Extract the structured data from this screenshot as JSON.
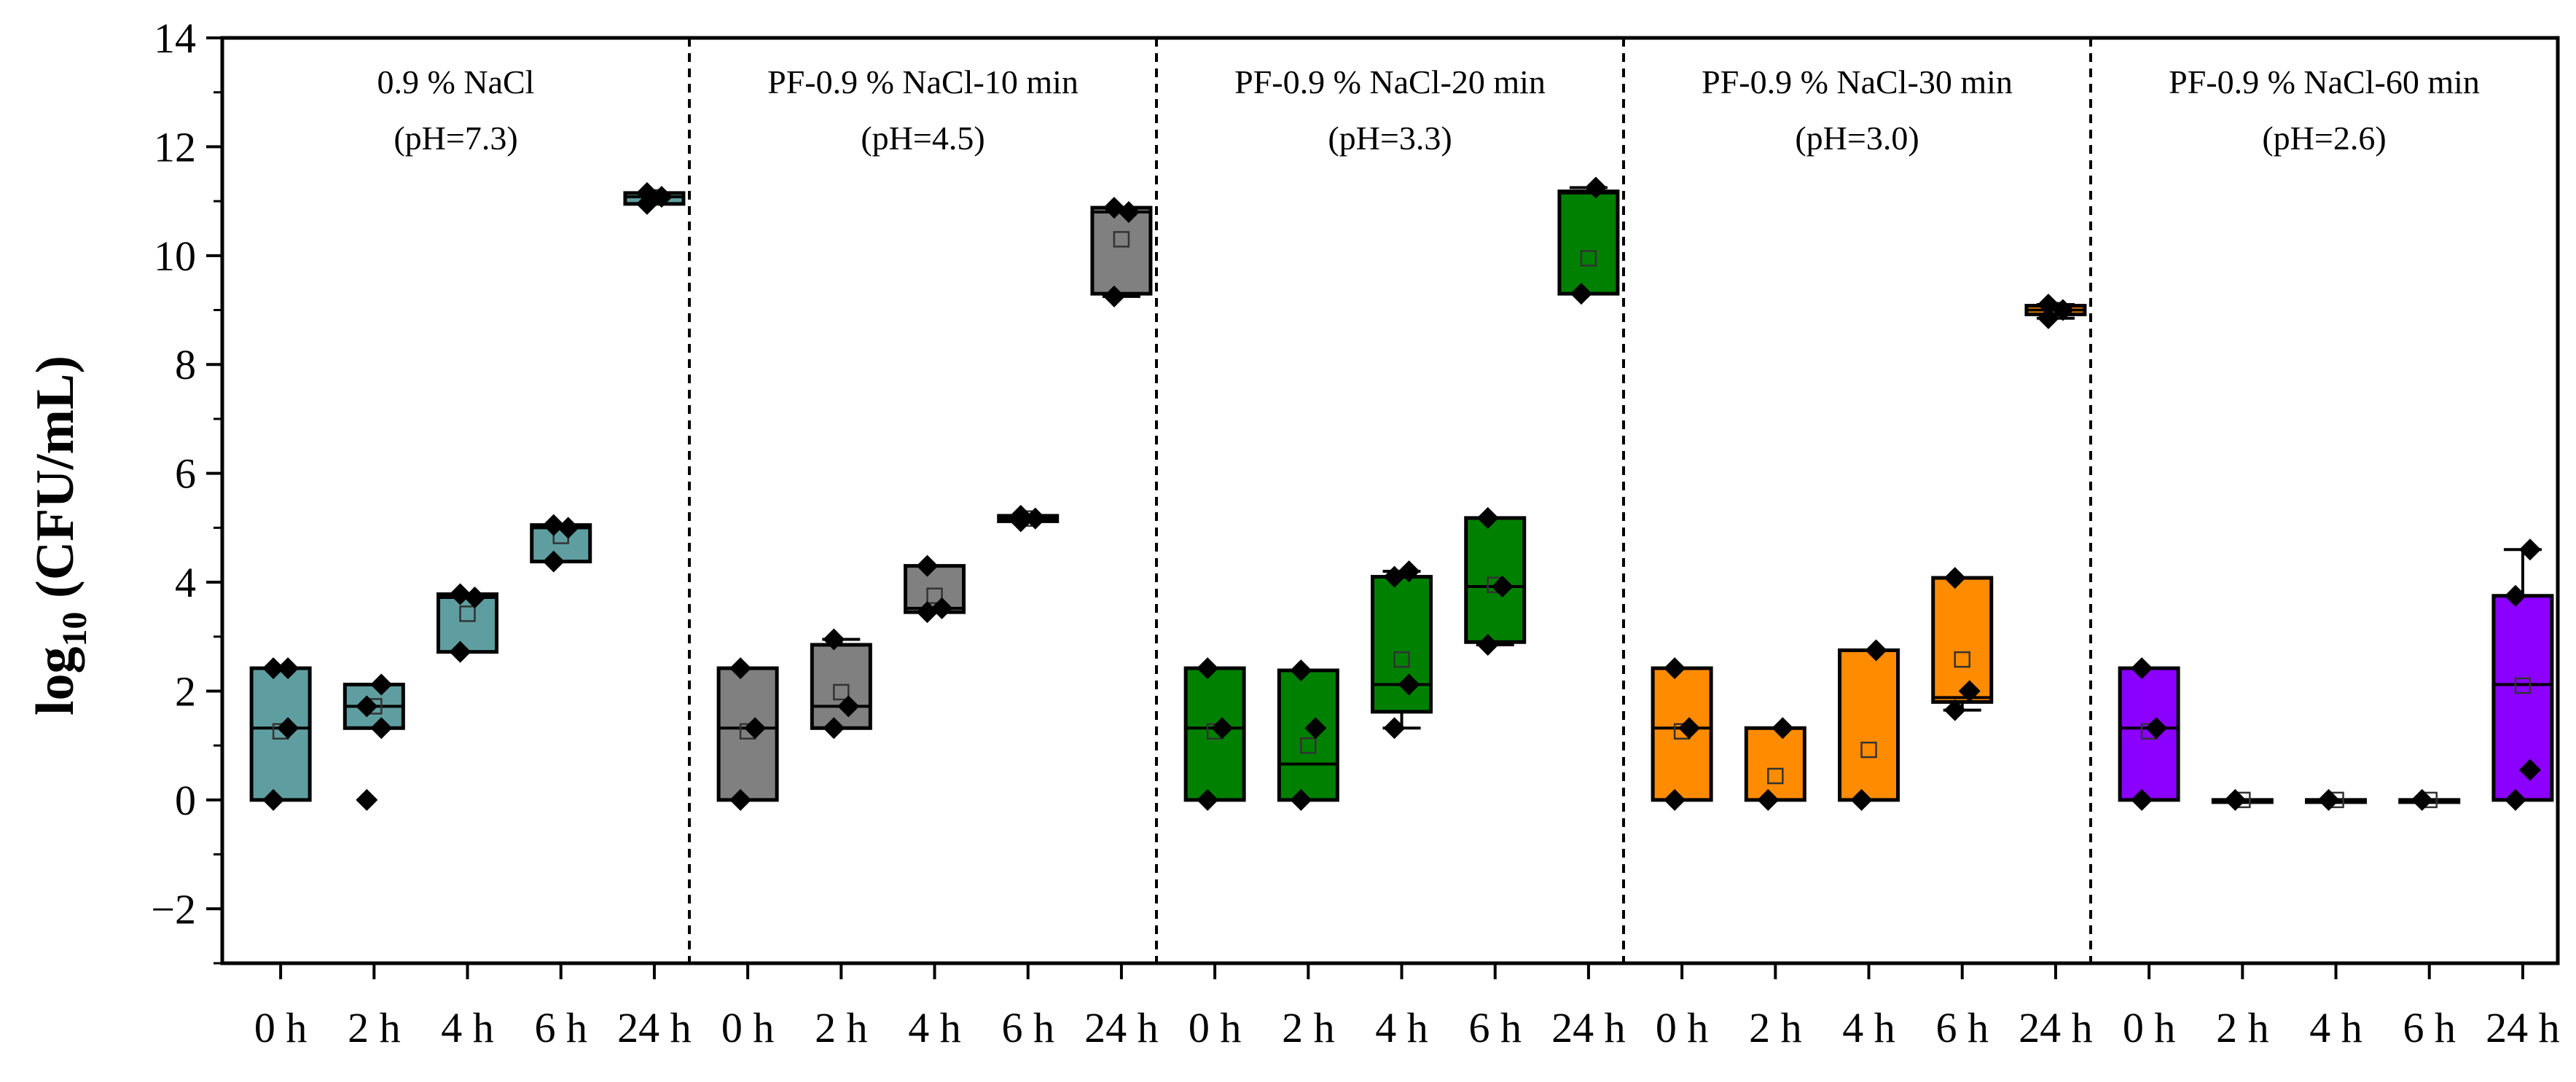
{
  "chart_data": {
    "type": "box",
    "ylabel_main": "log",
    "ylabel_sub": "10",
    "ylabel_rest": " (CFU/mL)",
    "ylim": [
      -3,
      14
    ],
    "yticks": [
      -2,
      0,
      2,
      4,
      6,
      8,
      10,
      12,
      14
    ],
    "ytick_labels": [
      "−2",
      "0",
      "2",
      "4",
      "6",
      "8",
      "10",
      "12",
      "14"
    ],
    "categories": [
      "0 h",
      "2 h",
      "4 h",
      "6 h",
      "24 h"
    ],
    "groups": [
      {
        "title": "0.9 % NaCl",
        "subtitle": "(pH=7.3)",
        "color": "#5f9ea0",
        "boxes": [
          {
            "q1": 0,
            "median": 1.32,
            "q3": 2.42,
            "mean": 1.26,
            "points": [
              0,
              1.32,
              2.42,
              2.42
            ],
            "whisker_low": 0,
            "whisker_high": 2.42
          },
          {
            "q1": 1.32,
            "median": 1.72,
            "q3": 2.12,
            "mean": 1.72,
            "points": [
              0,
              1.32,
              1.72,
              2.12
            ],
            "whisker_low": 1.32,
            "whisker_high": 2.12
          },
          {
            "q1": 2.72,
            "median": 3.72,
            "q3": 3.78,
            "mean": 3.42,
            "points": [
              2.72,
              3.72,
              3.78
            ],
            "whisker_low": 2.72,
            "whisker_high": 3.78
          },
          {
            "q1": 4.38,
            "median": 5.0,
            "q3": 5.05,
            "mean": 4.85,
            "points": [
              4.38,
              5.0,
              5.05
            ],
            "whisker_low": 4.38,
            "whisker_high": 5.05
          },
          {
            "q1": 10.95,
            "median": 11.08,
            "q3": 11.15,
            "mean": 11.07,
            "points": [
              10.95,
              11.08,
              11.15
            ],
            "whisker_low": 10.95,
            "whisker_high": 11.15
          }
        ]
      },
      {
        "title": "PF-0.9 % NaCl-10 min",
        "subtitle": "(pH=4.5)",
        "color": "#808080",
        "boxes": [
          {
            "q1": 0,
            "median": 1.32,
            "q3": 2.42,
            "mean": 1.26,
            "points": [
              0,
              1.32,
              2.42
            ],
            "whisker_low": 0,
            "whisker_high": 2.42
          },
          {
            "q1": 1.32,
            "median": 1.72,
            "q3": 2.85,
            "mean": 1.98,
            "points": [
              1.32,
              1.72,
              2.95
            ],
            "whisker_low": 1.32,
            "whisker_high": 2.95
          },
          {
            "q1": 3.45,
            "median": 3.52,
            "q3": 4.3,
            "mean": 3.75,
            "points": [
              3.45,
              3.52,
              4.3
            ],
            "whisker_low": 3.45,
            "whisker_high": 4.3
          },
          {
            "q1": 5.12,
            "median": 5.17,
            "q3": 5.22,
            "mean": 5.17,
            "points": [
              5.12,
              5.17,
              5.22
            ],
            "whisker_low": 5.12,
            "whisker_high": 5.22
          },
          {
            "q1": 9.3,
            "median": 10.8,
            "q3": 10.88,
            "mean": 10.3,
            "points": [
              9.25,
              10.8,
              10.88
            ],
            "whisker_low": 9.25,
            "whisker_high": 10.88
          }
        ]
      },
      {
        "title": "PF-0.9 % NaCl-20 min",
        "subtitle": "(pH=3.3)",
        "color": "#008000",
        "boxes": [
          {
            "q1": 0,
            "median": 1.32,
            "q3": 2.42,
            "mean": 1.26,
            "points": [
              0,
              1.32,
              2.42
            ],
            "whisker_low": 0,
            "whisker_high": 2.42
          },
          {
            "q1": 0,
            "median": 0.66,
            "q3": 2.38,
            "mean": 1.0,
            "points": [
              0,
              1.32,
              2.38
            ],
            "whisker_low": 0,
            "whisker_high": 2.38
          },
          {
            "q1": 1.62,
            "median": 2.12,
            "q3": 4.1,
            "mean": 2.58,
            "points": [
              1.32,
              2.12,
              4.1,
              4.2
            ],
            "whisker_low": 1.32,
            "whisker_high": 4.2
          },
          {
            "q1": 2.9,
            "median": 3.92,
            "q3": 5.18,
            "mean": 3.95,
            "points": [
              2.85,
              3.92,
              5.18
            ],
            "whisker_low": 2.85,
            "whisker_high": 5.18
          },
          {
            "q1": 9.3,
            "median": 11.15,
            "q3": 11.18,
            "mean": 9.95,
            "points": [
              9.3,
              11.25
            ],
            "whisker_low": 9.3,
            "whisker_high": 11.25
          }
        ]
      },
      {
        "title": "PF-0.9 % NaCl-30 min",
        "subtitle": "(pH=3.0)",
        "color": "#ff8c00",
        "boxes": [
          {
            "q1": 0,
            "median": 1.32,
            "q3": 2.42,
            "mean": 1.26,
            "points": [
              0,
              1.32,
              2.42
            ],
            "whisker_low": 0,
            "whisker_high": 2.42
          },
          {
            "q1": 0,
            "median": 0,
            "q3": 1.32,
            "mean": 0.44,
            "points": [
              0,
              1.32
            ],
            "whisker_low": 0,
            "whisker_high": 1.32
          },
          {
            "q1": 0,
            "median": 0,
            "q3": 2.75,
            "mean": 0.92,
            "points": [
              0,
              2.75
            ],
            "whisker_low": 0,
            "whisker_high": 2.75
          },
          {
            "q1": 1.8,
            "median": 1.88,
            "q3": 4.08,
            "mean": 2.58,
            "points": [
              1.65,
              2.0,
              4.08
            ],
            "whisker_low": 1.65,
            "whisker_high": 4.08
          },
          {
            "q1": 8.92,
            "median": 9.0,
            "q3": 9.08,
            "mean": 9.0,
            "points": [
              8.85,
              9.0,
              9.1
            ],
            "whisker_low": 8.85,
            "whisker_high": 9.1
          }
        ]
      },
      {
        "title": "PF-0.9 % NaCl-60 min",
        "subtitle": "(pH=2.6)",
        "color": "#8b00ff",
        "boxes": [
          {
            "q1": 0,
            "median": 1.32,
            "q3": 2.42,
            "mean": 1.26,
            "points": [
              0,
              1.32,
              2.42
            ],
            "whisker_low": 0,
            "whisker_high": 2.42
          },
          {
            "q1": 0,
            "median": 0,
            "q3": 0,
            "mean": 0,
            "points": [
              0
            ],
            "whisker_low": 0,
            "whisker_high": 0
          },
          {
            "q1": 0,
            "median": 0,
            "q3": 0,
            "mean": 0,
            "points": [
              0
            ],
            "whisker_low": 0,
            "whisker_high": 0
          },
          {
            "q1": 0,
            "median": 0,
            "q3": 0,
            "mean": 0,
            "points": [
              0
            ],
            "whisker_low": 0,
            "whisker_high": 0
          },
          {
            "q1": 0,
            "median": 2.12,
            "q3": 3.75,
            "mean": 2.1,
            "points": [
              0,
              0.55,
              3.75,
              4.6
            ],
            "whisker_low": 0,
            "whisker_high": 4.6
          }
        ]
      }
    ]
  }
}
